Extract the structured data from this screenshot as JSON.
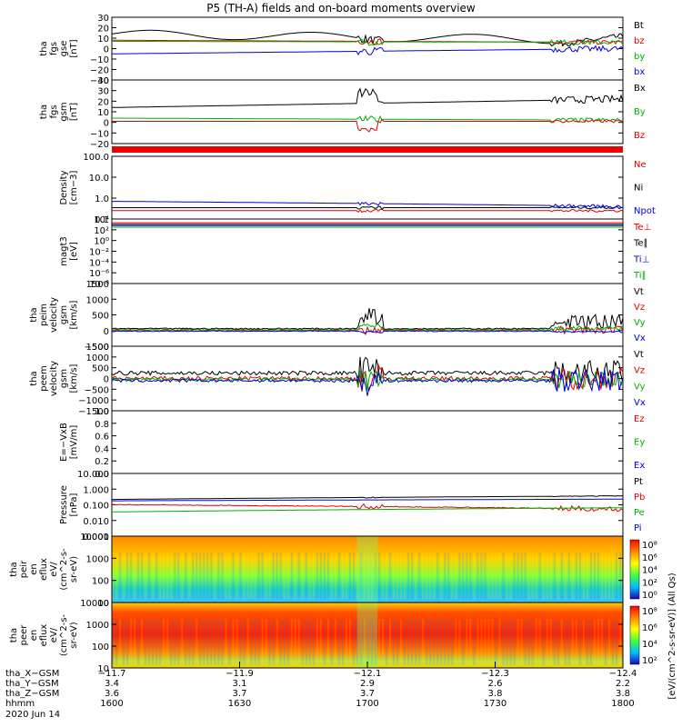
{
  "title": "P5 (TH-A) fields and on-board moments overview",
  "chart_data": {
    "type": "line",
    "title": "P5 (TH-A) fields and on-board moments overview",
    "panels": [
      {
        "id": "fgs-gse",
        "ylabel": [
          "tha",
          "fgs",
          "gse",
          "[nT]"
        ],
        "yticks": [
          "30",
          "20",
          "10",
          "0",
          "−10",
          "−20",
          "−30"
        ],
        "ylim": [
          -30,
          30
        ],
        "legend": [
          {
            "name": "Bt",
            "color": "#000000"
          },
          {
            "name": "bz",
            "color": "#e00000"
          },
          {
            "name": "by",
            "color": "#00b000"
          },
          {
            "name": "bx",
            "color": "#0000e0"
          }
        ]
      },
      {
        "id": "fgs-gsm",
        "ylabel": [
          "tha",
          "fgs",
          "gsm",
          "[nT]"
        ],
        "yticks": [
          "40",
          "30",
          "20",
          "10",
          "0",
          "−10",
          "−20"
        ],
        "ylim": [
          -20,
          40
        ],
        "legend": [
          {
            "name": "Bx",
            "color": "#000000"
          },
          {
            "name": "By",
            "color": "#00b000"
          },
          {
            "name": "Bz",
            "color": "#e00000"
          }
        ]
      },
      {
        "id": "density",
        "ylabel": [
          "Density",
          "[cm−3]"
        ],
        "yticks": [
          "100.0",
          "10.0",
          "1.0",
          "0.1"
        ],
        "ylim": [
          0.1,
          100
        ],
        "log": true,
        "legend": [
          {
            "name": "Ne",
            "color": "#e00000"
          },
          {
            "name": "Ni",
            "color": "#000000"
          },
          {
            "name": "Npot",
            "color": "#0000e0"
          }
        ]
      },
      {
        "id": "temperature",
        "ylabel": [
          "magt3",
          "[eV]"
        ],
        "yticks": [
          "10⁴",
          "10²",
          "10⁰",
          "10⁻²",
          "10⁻⁴",
          "10⁻⁶",
          "10⁻⁸"
        ],
        "ylim": [
          1e-08,
          10000.0
        ],
        "log": true,
        "legend": [
          {
            "name": "Te⊥",
            "color": "#e00000"
          },
          {
            "name": "Te∥",
            "color": "#000000"
          },
          {
            "name": "Ti⊥",
            "color": "#0000e0"
          },
          {
            "name": "Ti∥",
            "color": "#00b000"
          }
        ]
      },
      {
        "id": "peim-velocity",
        "ylabel": [
          "tha",
          "peim",
          "velocity",
          "gsm",
          "[km/s]"
        ],
        "yticks": [
          "1500",
          "1000",
          "500",
          "0",
          "−500"
        ],
        "ylim": [
          -500,
          1500
        ],
        "legend": [
          {
            "name": "Vt",
            "color": "#000000"
          },
          {
            "name": "Vz",
            "color": "#e00000"
          },
          {
            "name": "Vy",
            "color": "#00b000"
          },
          {
            "name": "Vx",
            "color": "#0000e0"
          }
        ]
      },
      {
        "id": "peem-velocity",
        "ylabel": [
          "tha",
          "peem",
          "velocity",
          "gsm",
          "[km/s]"
        ],
        "yticks": [
          "1500",
          "1000",
          "500",
          "0",
          "−500",
          "−1000",
          "−1500"
        ],
        "ylim": [
          -1500,
          1500
        ],
        "legend": [
          {
            "name": "Vt",
            "color": "#000000"
          },
          {
            "name": "Vz",
            "color": "#e00000"
          },
          {
            "name": "Vy",
            "color": "#00b000"
          },
          {
            "name": "Vx",
            "color": "#0000e0"
          }
        ]
      },
      {
        "id": "efield",
        "ylabel": [
          "E=−VxB",
          "[mV/m]"
        ],
        "yticks": [
          "1.0",
          "0.8",
          "0.6",
          "0.4",
          "0.2",
          "0.0"
        ],
        "ylim": [
          0,
          1
        ],
        "legend": [
          {
            "name": "Ez",
            "color": "#e00000"
          },
          {
            "name": "Ey",
            "color": "#00b000"
          },
          {
            "name": "Ex",
            "color": "#0000e0"
          }
        ]
      },
      {
        "id": "pressure",
        "ylabel": [
          "Pressure",
          "[nPa]"
        ],
        "yticks": [
          "10.000",
          "1.000",
          "0.100",
          "0.010",
          "0.001"
        ],
        "ylim": [
          0.001,
          10
        ],
        "log": true,
        "legend": [
          {
            "name": "Pt",
            "color": "#000000"
          },
          {
            "name": "Pb",
            "color": "#e00000"
          },
          {
            "name": "Pe",
            "color": "#00b000"
          },
          {
            "name": "Pi",
            "color": "#0000e0"
          }
        ]
      },
      {
        "id": "peir-eflux",
        "ylabel": [
          "tha",
          "peir",
          "en",
          "eflux",
          "eV/",
          "(cm^2-s-",
          "sr-eV)"
        ],
        "yticks": [
          "10000",
          "1000",
          "100",
          "10"
        ],
        "ylim": [
          5,
          25000
        ],
        "log": true,
        "colorbar": {
          "ticks": [
            "10⁸",
            "10⁶",
            "10⁴",
            "10²",
            "10⁰"
          ],
          "label": "[eV/(cm^2-s-sr-eV)] (All Qs)"
        }
      },
      {
        "id": "peer-eflux",
        "ylabel": [
          "tha",
          "peer",
          "en",
          "eflux",
          "eV/",
          "(cm^2-s-",
          "sr-eV)"
        ],
        "yticks": [
          "10000",
          "1000",
          "100",
          "10"
        ],
        "ylim": [
          5,
          25000
        ],
        "log": true,
        "colorbar": {
          "ticks": [
            "10⁸",
            "10⁶",
            "10⁴",
            "10²"
          ],
          "label": "[eV/(cm^2-s-sr-eV)] (All Qs)"
        }
      }
    ],
    "x_axis": {
      "rows": [
        {
          "label": "tha_X−GSM",
          "values": [
            "−11.7",
            "−11.9",
            "−12.1",
            "−12.3",
            "−12.4"
          ]
        },
        {
          "label": "tha_Y−GSM",
          "values": [
            "3.4",
            "3.1",
            "2.9",
            "2.6",
            "2.2"
          ]
        },
        {
          "label": "tha_Z−GSM",
          "values": [
            "3.6",
            "3.7",
            "3.7",
            "3.8",
            "3.8"
          ]
        },
        {
          "label": "hhmm",
          "values": [
            "1600",
            "1630",
            "1700",
            "1730",
            "1800"
          ]
        }
      ],
      "date": "2020 Jun 14",
      "range_minutes": [
        0,
        120
      ]
    }
  }
}
